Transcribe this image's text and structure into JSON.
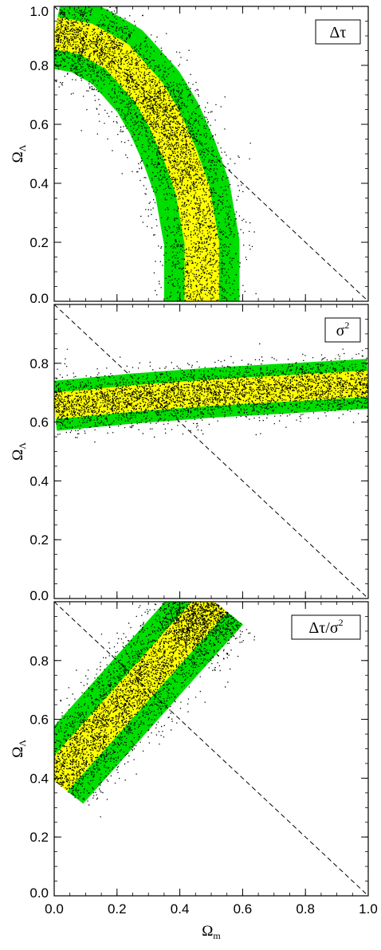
{
  "chart_data": [
    {
      "type": "scatter",
      "label_parts": [
        "Δτ",
        ""
      ],
      "xlabel": "",
      "ylabel": [
        "Ω",
        "Λ"
      ],
      "xlim": [
        0,
        1
      ],
      "ylim": [
        0,
        1
      ],
      "y_ticks": [
        "0.0",
        "0.2",
        "0.4",
        "0.6",
        "0.8",
        "1.0"
      ],
      "x_ticks": [],
      "flat_line": {
        "x": [
          0,
          1
        ],
        "y": [
          1,
          0
        ],
        "style": "dashed"
      },
      "bands": {
        "center": [
          [
            0.0,
            0.91
          ],
          [
            0.1,
            0.89
          ],
          [
            0.2,
            0.83
          ],
          [
            0.3,
            0.71
          ],
          [
            0.35,
            0.62
          ],
          [
            0.4,
            0.5
          ],
          [
            0.44,
            0.38
          ],
          [
            0.47,
            0.2
          ],
          [
            0.47,
            0.0
          ]
        ],
        "inner_half_width": 0.055,
        "outer_half_width": 0.12,
        "colors": {
          "inner": "#ffff00",
          "outer": "#00dd00"
        }
      },
      "scatter_points": 4200
    },
    {
      "type": "scatter",
      "label_parts": [
        "σ",
        "2"
      ],
      "xlabel": "",
      "ylabel": [
        "Ω",
        "Λ"
      ],
      "xlim": [
        0,
        1
      ],
      "ylim": [
        0,
        1
      ],
      "y_ticks": [
        "0.0",
        "0.2",
        "0.4",
        "0.6",
        "0.8"
      ],
      "x_ticks": [],
      "flat_line": {
        "x": [
          0,
          1
        ],
        "y": [
          1,
          0
        ],
        "style": "dashed"
      },
      "bands": {
        "center": [
          [
            0.0,
            0.655
          ],
          [
            0.25,
            0.68
          ],
          [
            0.5,
            0.7
          ],
          [
            0.75,
            0.715
          ],
          [
            1.0,
            0.73
          ]
        ],
        "inner_half_width": 0.045,
        "outer_half_width": 0.085,
        "colors": {
          "inner": "#ffff00",
          "outer": "#00dd00"
        }
      },
      "scatter_points": 3600
    },
    {
      "type": "scatter",
      "label_parts": [
        "Δτ/σ",
        "2"
      ],
      "xlabel": [
        "Ω",
        "m"
      ],
      "ylabel": [
        "Ω",
        "Λ"
      ],
      "xlim": [
        0,
        1
      ],
      "ylim": [
        0,
        1
      ],
      "y_ticks": [
        "0.0",
        "0.2",
        "0.4",
        "0.6",
        "0.8"
      ],
      "x_ticks": [
        "0.0",
        "0.2",
        "0.4",
        "0.6",
        "0.8",
        "1.0"
      ],
      "flat_line": {
        "x": [
          0,
          1
        ],
        "y": [
          1,
          0
        ],
        "style": "dashed"
      },
      "bands": {
        "center": [
          [
            0.0,
            0.39
          ],
          [
            0.2,
            0.63
          ],
          [
            0.4,
            0.87
          ],
          [
            0.51,
            1.0
          ]
        ],
        "inner_half_width": 0.055,
        "outer_half_width": 0.12,
        "colors": {
          "inner": "#ffff00",
          "outer": "#00dd00"
        }
      },
      "scatter_points": 4200
    }
  ]
}
